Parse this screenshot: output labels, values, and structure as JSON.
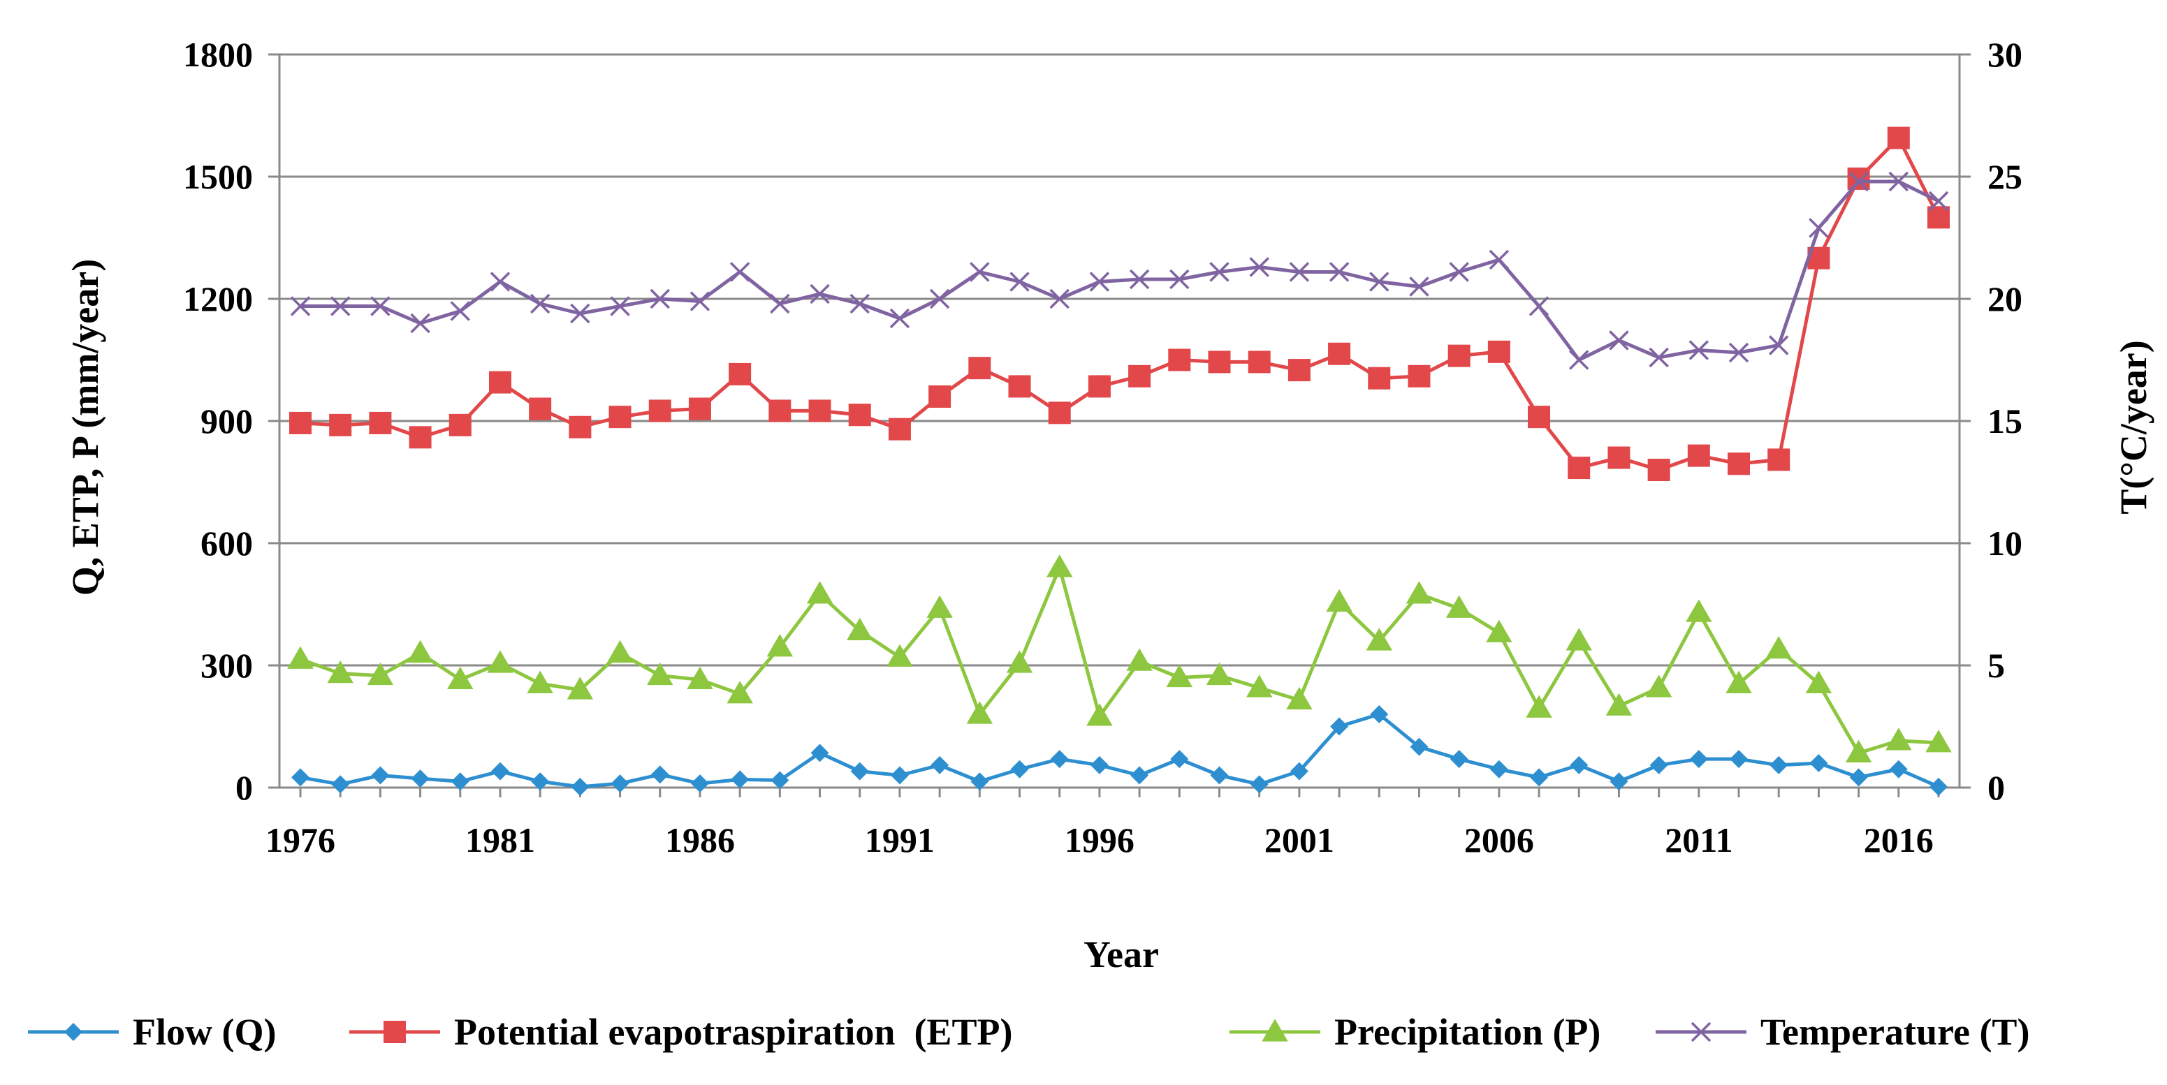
{
  "chart_data": {
    "type": "line",
    "title": "",
    "xlabel": "Year",
    "ylabel": "Q, ETP, P (mm/year)",
    "y2label": "T(°C/year)",
    "ylim": [
      0,
      1800
    ],
    "y2lim": [
      0,
      30
    ],
    "yticks": [
      "0",
      "300",
      "600",
      "900",
      "1200",
      "1500",
      "1800"
    ],
    "y2ticks": [
      "0",
      "5",
      "10",
      "15",
      "20",
      "25",
      "30"
    ],
    "xticks": [
      "1976",
      "1981",
      "1986",
      "1991",
      "1996",
      "2001",
      "2006",
      "2011",
      "2016"
    ],
    "x": [
      1976,
      1977,
      1978,
      1979,
      1980,
      1981,
      1982,
      1983,
      1984,
      1985,
      1986,
      1987,
      1988,
      1989,
      1990,
      1991,
      1992,
      1993,
      1994,
      1995,
      1996,
      1997,
      1998,
      1999,
      2000,
      2001,
      2002,
      2003,
      2004,
      2005,
      2006,
      2007,
      2008,
      2009,
      2010,
      2011,
      2012,
      2013,
      2014,
      2015,
      2016,
      2017
    ],
    "grid": "horizontal",
    "legend_position": "bottom",
    "series": [
      {
        "name": "Flow (Q)",
        "axis": "left",
        "color": "#2E8FD0",
        "marker": "diamond",
        "values": [
          25,
          8,
          30,
          22,
          15,
          40,
          15,
          2,
          10,
          32,
          10,
          20,
          18,
          85,
          40,
          30,
          55,
          15,
          45,
          70,
          55,
          30,
          70,
          30,
          8,
          40,
          150,
          180,
          100,
          70,
          45,
          25,
          55,
          15,
          55,
          70,
          70,
          55,
          60,
          25,
          45,
          2
        ]
      },
      {
        "name": "Potential evapotraspiration  (ETP)",
        "axis": "left",
        "color": "#E2474A",
        "marker": "square",
        "values": [
          895,
          890,
          895,
          860,
          890,
          995,
          930,
          885,
          910,
          925,
          930,
          1015,
          925,
          925,
          915,
          880,
          960,
          1030,
          985,
          920,
          985,
          1010,
          1050,
          1045,
          1045,
          1025,
          1065,
          1005,
          1010,
          1060,
          1070,
          910,
          785,
          810,
          780,
          815,
          795,
          805,
          1300,
          1495,
          1595,
          1400
        ]
      },
      {
        "name": "Precipitation (P)",
        "axis": "left",
        "color": "#8DC63F",
        "marker": "triangle",
        "values": [
          315,
          280,
          275,
          330,
          265,
          305,
          255,
          240,
          330,
          275,
          265,
          230,
          345,
          475,
          385,
          320,
          440,
          180,
          305,
          540,
          175,
          310,
          270,
          275,
          245,
          215,
          455,
          360,
          475,
          440,
          380,
          195,
          360,
          200,
          245,
          430,
          255,
          340,
          255,
          85,
          115,
          110
        ]
      },
      {
        "name": "Temperature (T)",
        "axis": "right",
        "color": "#8064A2",
        "marker": "x",
        "values": [
          19.7,
          19.7,
          19.7,
          19.0,
          19.5,
          20.7,
          19.8,
          19.4,
          19.7,
          20.0,
          19.9,
          21.1,
          19.8,
          20.2,
          19.8,
          19.2,
          20.0,
          21.1,
          20.7,
          20.0,
          20.7,
          20.8,
          20.8,
          21.1,
          21.3,
          21.1,
          21.1,
          20.7,
          20.5,
          21.1,
          21.6,
          19.7,
          17.5,
          18.3,
          17.6,
          17.9,
          17.8,
          18.1,
          22.9,
          24.8,
          24.8,
          24.0
        ]
      }
    ]
  }
}
